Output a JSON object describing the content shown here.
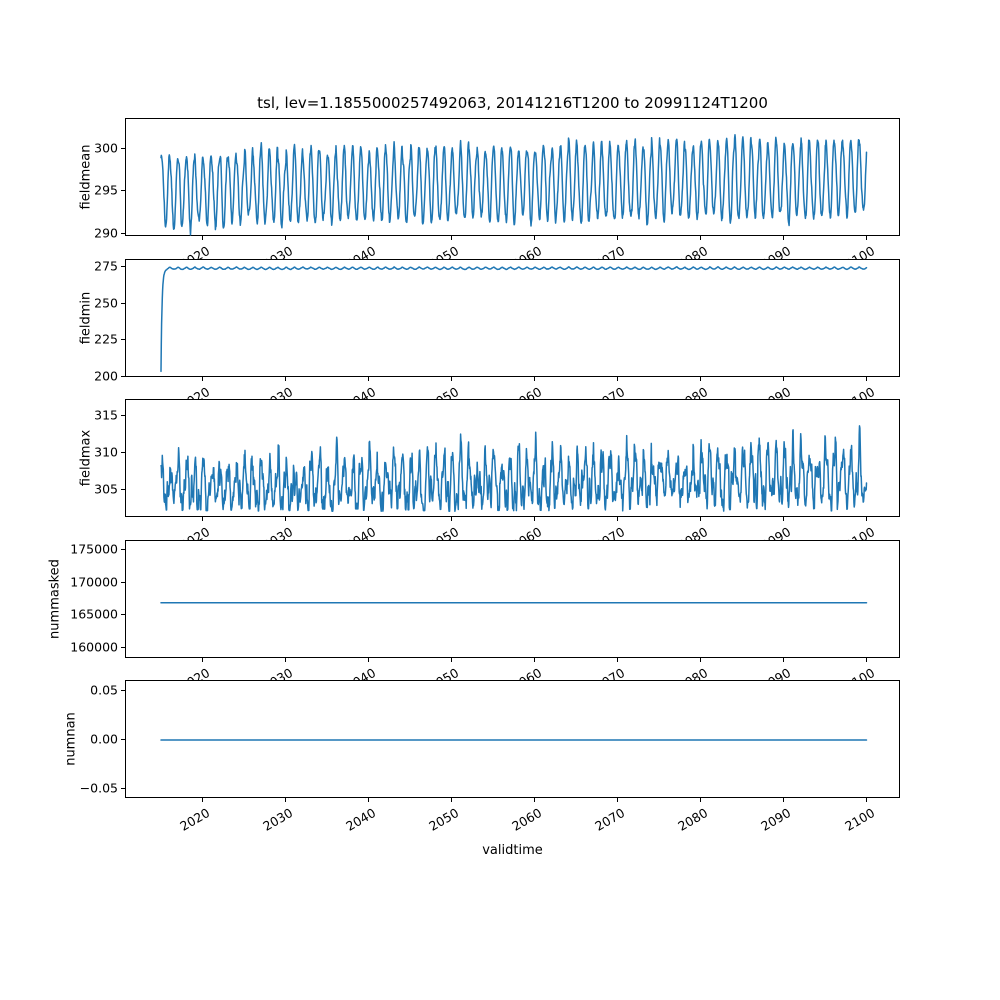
{
  "figure": {
    "background": "#ffffff"
  },
  "chart_data": {
    "type": "line",
    "title": "tsl, lev=1.1855000257492063, 20141216T1200 to 20991124T1200",
    "xlabel": "validtime",
    "x_start": 2014.958,
    "x_end": 2099.899,
    "xlim": [
      2010.75,
      2104.05
    ],
    "xticks": [
      2020,
      2030,
      2040,
      2050,
      2060,
      2070,
      2080,
      2090,
      2100
    ],
    "xtick_labels": [
      "2020",
      "2030",
      "2040",
      "2050",
      "2060",
      "2070",
      "2080",
      "2090",
      "2100"
    ],
    "xtick_rotation_deg": 30,
    "line_color": "#1f77b4",
    "grid": false,
    "legend": null,
    "subplots": [
      {
        "ylabel": "fieldmean",
        "ylim": [
          289.6,
          303.6
        ],
        "yticks": [
          290,
          295,
          300
        ],
        "ytick_labels": [
          "290",
          "295",
          "300"
        ],
        "description": "Annual oscillation: troughs ~290.5-293, peaks ~299-300 early rising to ~301-302.7 by the 2090s",
        "series": {
          "pattern": "seasonal",
          "seed": 11,
          "base": 295.25,
          "base_trend": 1.35,
          "base_jitter": 0.3,
          "amp": 4.05,
          "amp_trend": 0.45,
          "amp_jitter": 0.35,
          "harmonic": 0.45,
          "noise": 0.22,
          "phase": 0.02
        }
      },
      {
        "ylabel": "fieldmin",
        "ylim": [
          199.5,
          280.3
        ],
        "yticks": [
          200,
          225,
          250,
          275
        ],
        "ytick_labels": [
          "200",
          "225",
          "250",
          "275"
        ],
        "description": "Starts near 203.4, spins up to ~274.7 within the first year, then small annual wiggles between ~274.0 and ~275.4",
        "series": {
          "pattern": "spinup",
          "seed": 22,
          "start_drop": 71.35,
          "settle": 274.7,
          "tau": 0.13,
          "w1": 0.55,
          "w5": 0.3,
          "offset": -0.15,
          "year_jitter": 0.12,
          "noise": 0.06,
          "phase": 0.03
        }
      },
      {
        "ylabel": "fieldmax",
        "ylim": [
          301.2,
          317.2
        ],
        "yticks": [
          305,
          310,
          315
        ],
        "ytick_labels": [
          "305",
          "310",
          "315"
        ],
        "description": "Noisy annual cycle ~302.5-312 early, peaks growing to ~316 after 2080, quieter interval around 2074-2079",
        "series": {
          "pattern": "noisy_seasonal",
          "seed": 33,
          "base": 305.0,
          "base_trend": 1.3,
          "base_jitter": 0.4,
          "amp": 2.9,
          "amp_trend": 1.3,
          "amp_jitter": 0.6,
          "cos_floor": -0.5,
          "h2": 1.1,
          "h3": 0.85,
          "noise": 0.6,
          "floor": 302.1,
          "phase": 0.05,
          "quiet_start": 2074,
          "quiet_end": 2079,
          "quiet_factor": 0.55
        }
      },
      {
        "ylabel": "nummasked",
        "ylim": [
          158400,
          176500
        ],
        "yticks": [
          160000,
          165000,
          170000,
          175000
        ],
        "ytick_labels": [
          "160000",
          "165000",
          "170000",
          "175000"
        ],
        "description": "Constant at approximately 167040 for the entire period",
        "series": {
          "pattern": "constant",
          "value": 167040
        }
      },
      {
        "ylabel": "numnan",
        "ylim": [
          -0.0606,
          0.0606
        ],
        "yticks": [
          -0.05,
          0.0,
          0.05
        ],
        "ytick_labels": [
          "−0.05",
          "0.00",
          "0.05"
        ],
        "description": "Constant at 0.00 for the entire period",
        "series": {
          "pattern": "constant",
          "value": 0
        }
      }
    ]
  }
}
